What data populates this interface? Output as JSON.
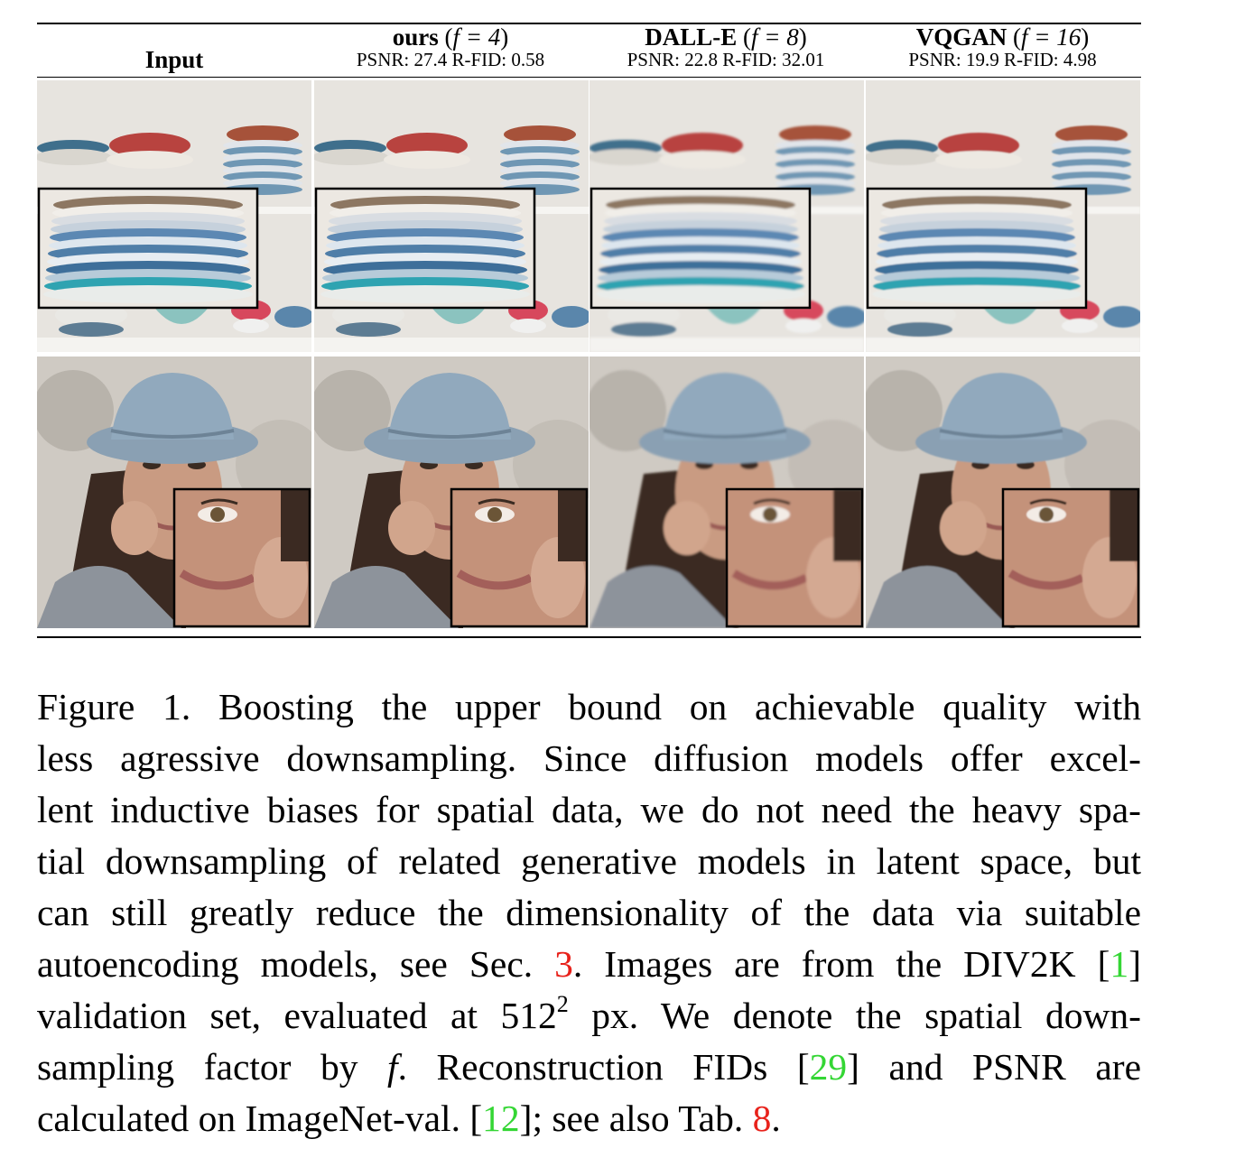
{
  "columns": [
    {
      "label": "Input"
    },
    {
      "label": "ours",
      "factor": "f = 4",
      "psnr_label": "PSNR:",
      "psnr": "27.4",
      "rfid_label": "R-FID:",
      "rfid": "0.58"
    },
    {
      "label": "DALL-E",
      "factor": "f = 8",
      "psnr_label": "PSNR:",
      "psnr": "22.8",
      "rfid_label": "R-FID:",
      "rfid": "32.01"
    },
    {
      "label": "VQGAN",
      "factor": "f = 16",
      "psnr_label": "PSNR:",
      "psnr": "19.9",
      "rfid_label": "R-FID:",
      "rfid": "4.98"
    }
  ],
  "rows": [
    {
      "subject": "stacked plates and bowls on shelf",
      "inset": "zoom on plate stack"
    },
    {
      "subject": "woman in denim bucket hat",
      "inset": "zoom on face"
    }
  ],
  "caption": {
    "lines": [
      [
        "Figure 1.   Boosting the upper bound on achievable quality with"
      ],
      [
        "less agressive downsampling. Since diffusion models offer excel-"
      ],
      [
        "lent inductive biases for spatial data, we do not need the heavy spa-"
      ],
      [
        "tial downsampling of related generative models in latent space, but"
      ],
      [
        "can still greatly reduce the dimensionality of the data via suitable"
      ],
      [
        "autoencoding models, see Sec. ",
        {
          "ref": "3",
          "color": "red"
        },
        ". Images are from the DIV2K [",
        {
          "ref": "1",
          "color": "green"
        },
        "]"
      ],
      [
        "validation set, evaluated at 512",
        {
          "sup": "2"
        },
        " px. We denote the spatial down-"
      ],
      [
        "sampling factor by ",
        {
          "italic": "f"
        },
        ".  Reconstruction FIDs [",
        {
          "ref": "29",
          "color": "green"
        },
        "] and PSNR are"
      ],
      [
        "calculated on ImageNet-val. [",
        {
          "ref": "12",
          "color": "green"
        },
        "]; see also Tab. ",
        {
          "ref": "8",
          "color": "red"
        },
        "."
      ]
    ]
  },
  "colors": {
    "ref_red": "#e8221b",
    "ref_green": "#34d634"
  }
}
